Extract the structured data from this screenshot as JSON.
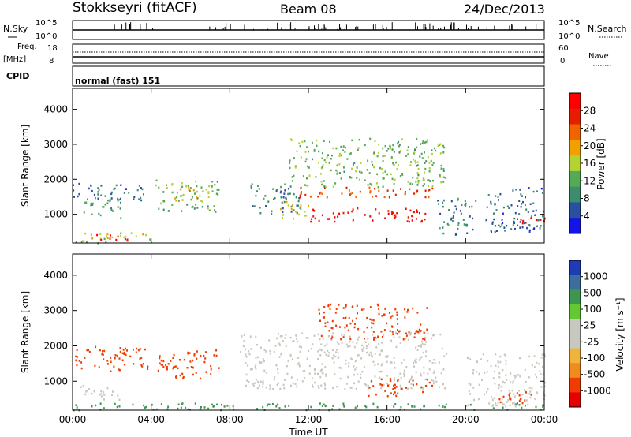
{
  "header": {
    "station": "Stokkseyri (fitACF)",
    "beam": "Beam 08",
    "date": "24/Dec/2013"
  },
  "strips": {
    "nsky_label": "N.Sky",
    "nsearch_label": "N.Search",
    "noise_ticks": [
      "10^5",
      "10^0"
    ],
    "freq_label": "Freq.",
    "freq_unit": "[MHz]",
    "freq_ticks": [
      "18",
      "8"
    ],
    "nave_label": "Nave",
    "nave_ticks": [
      "60",
      "0"
    ],
    "cpid_label": "CPID",
    "cpid_value": "normal (fast) 151"
  },
  "colors": {
    "power": [
      "#1414e6",
      "#28509f",
      "#3c8c6e",
      "#55aa55",
      "#b4d232",
      "#f0a000",
      "#f06400",
      "#e61e00",
      "#ff0000"
    ],
    "velocity": [
      "#e60000",
      "#f03c00",
      "#f08c1e",
      "#f0b43c",
      "#c8c8c0",
      "#c8c8c0",
      "#64c832",
      "#3c9650",
      "#3c6e9c",
      "#1e3cb4"
    ],
    "frame": "#000000"
  },
  "chart_data": [
    {
      "type": "heatmap",
      "title": "",
      "ylabel": "Slant Range [km]",
      "xlabel": "",
      "x_ticks": [
        "00:00",
        "04:00",
        "08:00",
        "12:00",
        "16:00",
        "20:00",
        "00:00"
      ],
      "y_ticks": [
        "4000",
        "3000",
        "2000",
        "1000"
      ],
      "xlim_hours": [
        0,
        24
      ],
      "ylim_km": [
        180,
        4600
      ],
      "colorbar": {
        "label": "Power [dB]",
        "ticks": [
          "28",
          "24",
          "20",
          "16",
          "12",
          "8",
          "4"
        ],
        "range": [
          0,
          30
        ]
      },
      "blobs": [
        {
          "t0": 0.0,
          "t1": 3.8,
          "r0": 1400,
          "r1": 1900,
          "value": 6
        },
        {
          "t0": 0.5,
          "t1": 2.5,
          "r0": 900,
          "r1": 1500,
          "value": 10
        },
        {
          "t0": 0.0,
          "t1": 4.0,
          "r0": 200,
          "r1": 500,
          "value": 14
        },
        {
          "t0": 1.0,
          "t1": 3.0,
          "r0": 250,
          "r1": 450,
          "value": 26
        },
        {
          "t0": 4.2,
          "t1": 7.5,
          "r0": 1100,
          "r1": 2000,
          "value": 12
        },
        {
          "t0": 5.0,
          "t1": 6.5,
          "r0": 1400,
          "r1": 1800,
          "value": 18
        },
        {
          "t0": 9.0,
          "t1": 11.5,
          "r0": 1000,
          "r1": 1900,
          "value": 8
        },
        {
          "t0": 10.5,
          "t1": 12.0,
          "r0": 900,
          "r1": 1400,
          "value": 16
        },
        {
          "t0": 11.5,
          "t1": 18.5,
          "r0": 1500,
          "r1": 1800,
          "value": 24
        },
        {
          "t0": 12.0,
          "t1": 18.0,
          "r0": 800,
          "r1": 1200,
          "value": 28
        },
        {
          "t0": 11.0,
          "t1": 19.0,
          "r0": 1800,
          "r1": 3200,
          "value": 12
        },
        {
          "t0": 18.5,
          "t1": 20.5,
          "r0": 400,
          "r1": 1500,
          "value": 8
        },
        {
          "t0": 21.0,
          "t1": 24.0,
          "r0": 500,
          "r1": 1800,
          "value": 6
        },
        {
          "t0": 22.5,
          "t1": 24.0,
          "r0": 700,
          "r1": 1000,
          "value": 26
        }
      ]
    },
    {
      "type": "heatmap",
      "title": "",
      "ylabel": "Slant Range [km]",
      "xlabel": "Time UT",
      "x_ticks": [
        "00:00",
        "04:00",
        "08:00",
        "12:00",
        "16:00",
        "20:00",
        "00:00"
      ],
      "y_ticks": [
        "4000",
        "3000",
        "2000",
        "1000"
      ],
      "xlim_hours": [
        0,
        24
      ],
      "ylim_km": [
        180,
        4600
      ],
      "colorbar": {
        "label": "Velocity [m s⁻¹]",
        "ticks": [
          "1000",
          "500",
          "100",
          "25",
          "-25",
          "-100",
          "-500",
          "-1000"
        ],
        "range": [
          -1000,
          1000
        ]
      },
      "blobs": [
        {
          "t0": 0.0,
          "t1": 3.8,
          "r0": 1300,
          "r1": 2000,
          "value": -200
        },
        {
          "t0": 0.3,
          "t1": 2.5,
          "r0": 500,
          "r1": 900,
          "value": 0
        },
        {
          "t0": 4.2,
          "t1": 7.5,
          "r0": 1100,
          "r1": 1900,
          "value": -150
        },
        {
          "t0": 8.5,
          "t1": 19.0,
          "r0": 800,
          "r1": 2400,
          "value": 0
        },
        {
          "t0": 15.0,
          "t1": 18.5,
          "r0": 600,
          "r1": 1100,
          "value": -300
        },
        {
          "t0": 12.5,
          "t1": 18.0,
          "r0": 2200,
          "r1": 3200,
          "value": -200
        },
        {
          "t0": 20.0,
          "t1": 24.0,
          "r0": 300,
          "r1": 1800,
          "value": 0
        },
        {
          "t0": 21.5,
          "t1": 23.5,
          "r0": 400,
          "r1": 800,
          "value": -200
        },
        {
          "t0": 0.0,
          "t1": 24.0,
          "r0": 200,
          "r1": 400,
          "value": 150
        }
      ]
    }
  ]
}
